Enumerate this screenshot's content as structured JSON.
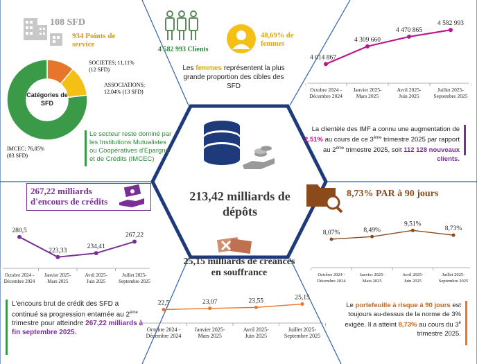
{
  "sfd_count": "108 SFD",
  "points_service": "934 Points de service",
  "pie": {
    "center_label": "Catégories de SFD",
    "slices": [
      {
        "name": "IMCEC",
        "pct": 76.85,
        "count_label": "IMCEC; 76,85% (83 SFD)",
        "color": "#3a9a47"
      },
      {
        "name": "SOCIETES",
        "pct": 11.11,
        "count_label": "SOCIETES; 11,11% (12 SFD)",
        "color": "#e8762a"
      },
      {
        "name": "ASSOCIATIONS",
        "pct": 12.04,
        "count_label": "ASSOCIATIONS; 12,04% (13 SFD)",
        "color": "#f5c016"
      }
    ]
  },
  "imcec_note": "Le secteur reste dominé par les Institutions Mutualistes ou Coopératives d'Epargne et de Crédits (IMCEC)",
  "clients": "4 582 993 Clients",
  "women_pct": "48,69% de femmes",
  "women_note_pre": "Les ",
  "women_note_word": "femmes",
  "women_note_post": " représentent la plus grande proportion des cibles des SFD",
  "clients_chart": {
    "type": "line",
    "categories": [
      "Octobre 2024 - Décembre 2024",
      "Janvier 2025- Mars 2025",
      "Avril 2025- Juin 2025",
      "Juillet 2025- Septembre 2025"
    ],
    "values": [
      4014867,
      4309660,
      4470865,
      4582993
    ],
    "labels": [
      "4 014 867",
      "4 309 660",
      "4 470 865",
      "4 582 993"
    ],
    "color": "#c0148c"
  },
  "clients_note": {
    "p1": "La clientèle des IMF a connu une augmentation de ",
    "pct": "2,51%",
    "p2": " au cours de ce 3",
    "sup1": "ème",
    "p3": " trimestre 2025 par rapport au 2",
    "sup2": "ème",
    "p4": " trimestre 2025, soit ",
    "new_clients": "112 128 nouveaux clients."
  },
  "credit_title": "267,22 milliards d'encours de crédits",
  "credit_chart": {
    "type": "line",
    "categories": [
      "Octobre 2024 - Décembre 2024",
      "Janvier 2025- Mars 2025",
      "Avril 2025- Juin 2025",
      "Juillet 2025- Septembre 2025"
    ],
    "values": [
      280.5,
      223.33,
      234.41,
      267.22
    ],
    "labels": [
      "280,5",
      "223,33",
      "234,41",
      "267,22"
    ],
    "color": "#7a2f96"
  },
  "credit_note": {
    "p1": "L'encours brut de crédit des SFD a continué sa progression entamée au 2",
    "sup": "ème",
    "p2": " trimestre pour atteindre ",
    "amount": "267,22 milliards à fin septembre 2025."
  },
  "deposits": "213,42 milliards de dépôts",
  "par_title": "8,73% PAR à 90 jours",
  "par_chart": {
    "type": "line",
    "categories": [
      "Octobre 2024 - Décembre 2024",
      "Janvier 2025- Mars 2025",
      "Avril 2025- Juin 2025",
      "Juillet 2025- Septembre 2025"
    ],
    "values": [
      8.07,
      8.49,
      9.51,
      8.73
    ],
    "labels": [
      "8,07%",
      "8,49%",
      "9,51%",
      "8,73%"
    ],
    "color": "#8a4a1a"
  },
  "par_note": {
    "p1": "Le ",
    "highlight": "portefeuille à risque à 90 jours",
    "p2": " est toujours au-dessus de la norme de 3% exigée. Il a atteint ",
    "pct": "8,73%",
    "p3": " au cours du 3",
    "sup": "è",
    "p4": " trimestre 2025."
  },
  "creances_title": "25,15 milliards de créances en souffrance",
  "creances_chart": {
    "type": "line",
    "categories": [
      "Octobre 2024 - Décembre 2024",
      "Janvier 2025- Mars 2025",
      "Avril 2025- Juin 2025",
      "Juillet 2025- Septembre 2025"
    ],
    "values": [
      22.5,
      23.07,
      23.55,
      25.15
    ],
    "labels": [
      "22,5",
      "23,07",
      "23,55",
      "25,15"
    ],
    "color": "#e8762a"
  }
}
